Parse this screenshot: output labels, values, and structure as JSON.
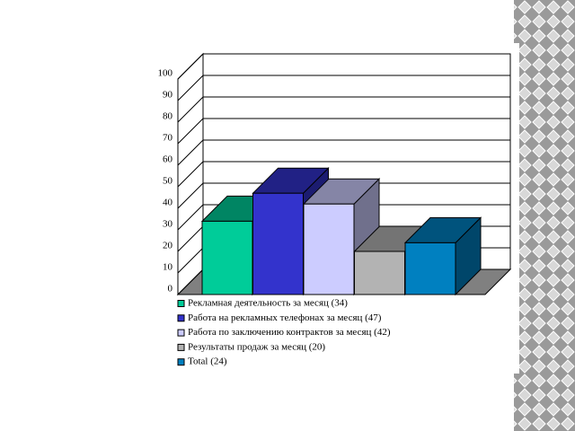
{
  "chart_data": {
    "type": "bar3d",
    "categories": [
      null
    ],
    "series": [
      {
        "name": "Рекламная деятельность за месяц (34)",
        "color": "#00cc99",
        "values": [
          34
        ]
      },
      {
        "name": "Работа на рекламных телефонах за месяц (47)",
        "color": "#3333cc",
        "values": [
          47
        ]
      },
      {
        "name": "Работа по заключению контрактов за месяц (42)",
        "color": "#ccccff",
        "values": [
          42
        ]
      },
      {
        "name": "Результаты продаж за месяц (20)",
        "color": "#b3b3b3",
        "values": [
          20
        ]
      },
      {
        "name": "Total (24)",
        "color": "#0080c0",
        "values": [
          24
        ]
      }
    ],
    "ylim": [
      0,
      100
    ],
    "yticks": [
      0,
      10,
      20,
      30,
      40,
      50,
      60,
      70,
      80,
      90,
      100
    ],
    "grid": true,
    "legend": "bottom"
  }
}
